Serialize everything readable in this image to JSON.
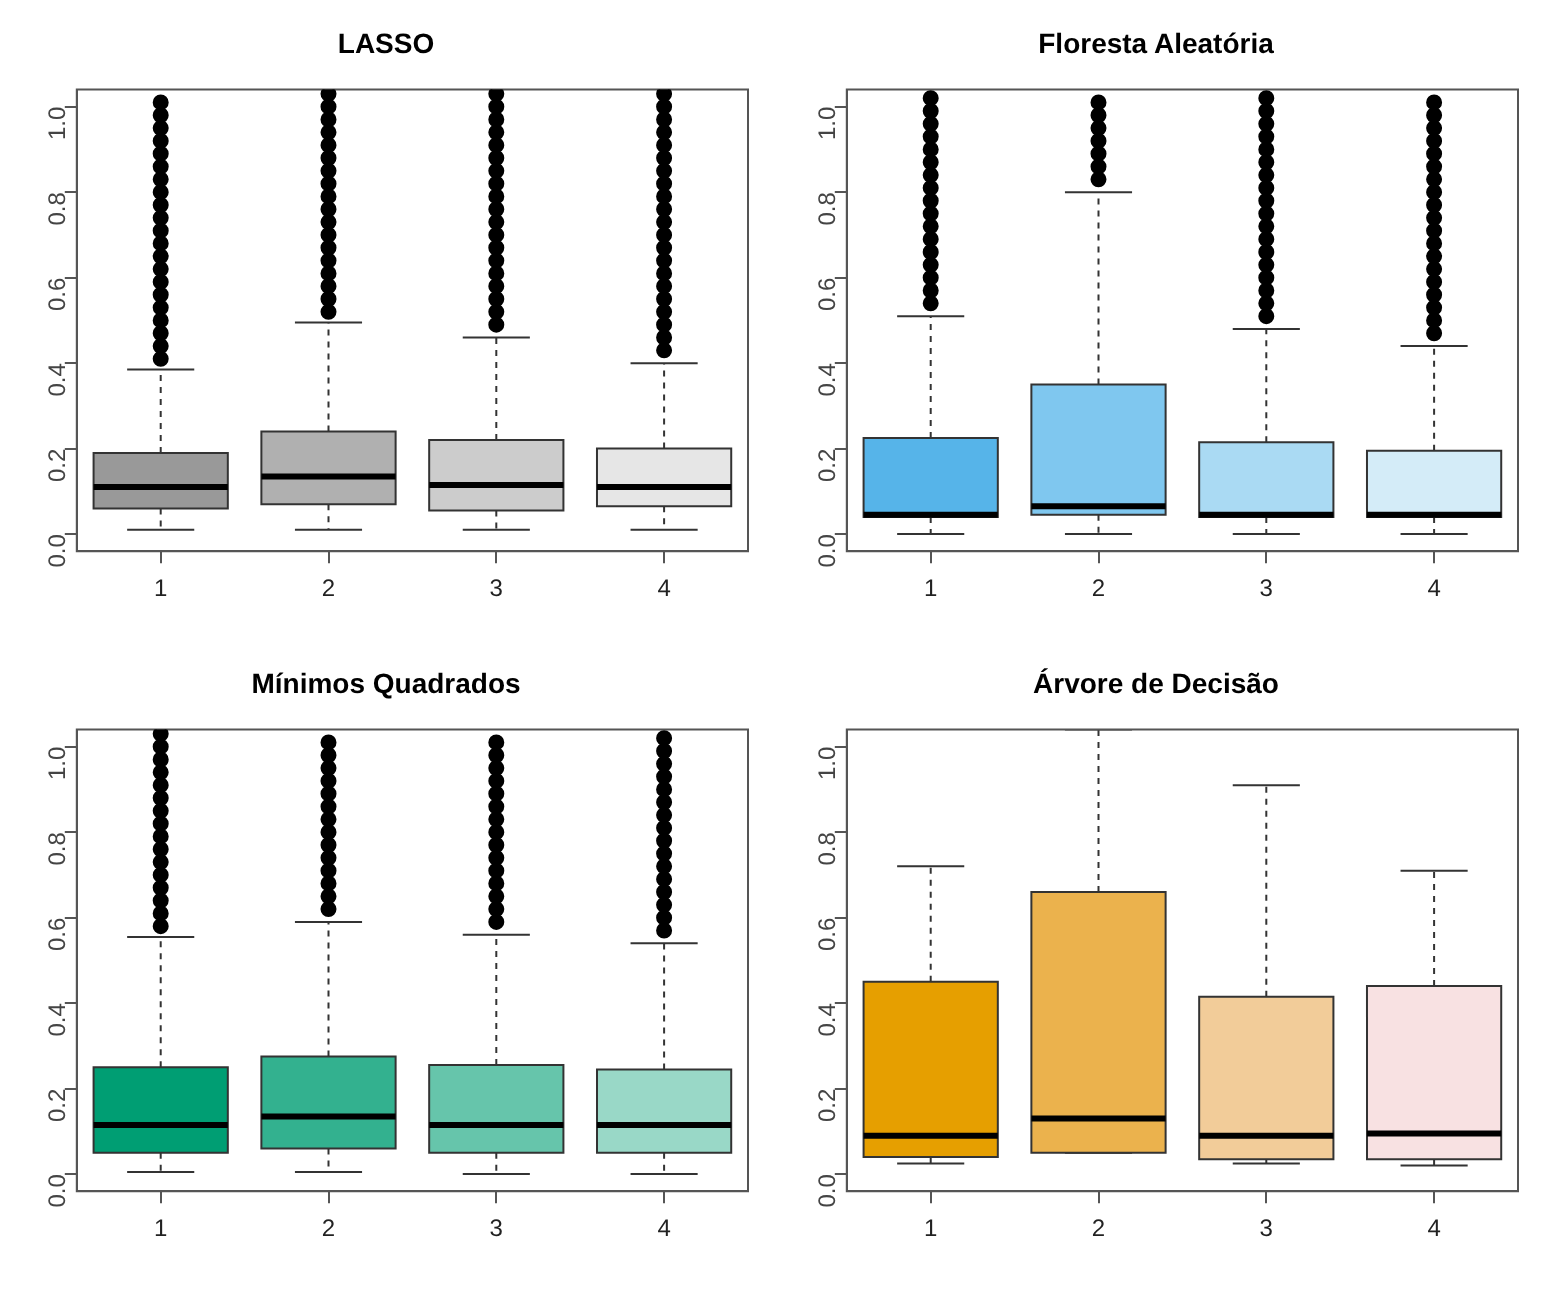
{
  "chart_data": [
    {
      "type": "box",
      "title": "LASSO",
      "categories": [
        "1",
        "2",
        "3",
        "4"
      ],
      "colors": [
        "#999999",
        "#b0b0b0",
        "#cccccc",
        "#e6e6e6"
      ],
      "ylim": [
        -0.04,
        1.04
      ],
      "yticks": [
        {
          "value": 0,
          "label": "0.0"
        },
        {
          "value": 0.2,
          "label": "0.2"
        },
        {
          "value": 0.4,
          "label": "0.4"
        },
        {
          "value": 0.6,
          "label": "0.6"
        },
        {
          "value": 0.8,
          "label": "0.8"
        },
        {
          "value": 1,
          "label": "1.0"
        }
      ],
      "grid": false,
      "legend": false,
      "boxes": [
        {
          "low": 0.01,
          "q1": 0.06,
          "median": 0.11,
          "q3": 0.19,
          "high": 0.385,
          "outliers": [
            0.41,
            0.44,
            0.47,
            0.5,
            0.53,
            0.56,
            0.59,
            0.62,
            0.65,
            0.68,
            0.71,
            0.74,
            0.77,
            0.8,
            0.83,
            0.86,
            0.89,
            0.92,
            0.95,
            0.98,
            1.01
          ]
        },
        {
          "low": 0.01,
          "q1": 0.07,
          "median": 0.135,
          "q3": 0.24,
          "high": 0.495,
          "outliers": [
            0.52,
            0.55,
            0.58,
            0.61,
            0.64,
            0.67,
            0.7,
            0.73,
            0.76,
            0.79,
            0.82,
            0.85,
            0.88,
            0.91,
            0.94,
            0.97,
            1.0,
            1.03
          ]
        },
        {
          "low": 0.01,
          "q1": 0.055,
          "median": 0.115,
          "q3": 0.22,
          "high": 0.46,
          "outliers": [
            0.49,
            0.52,
            0.55,
            0.58,
            0.61,
            0.64,
            0.67,
            0.7,
            0.73,
            0.76,
            0.79,
            0.82,
            0.85,
            0.88,
            0.91,
            0.94,
            0.97,
            1.0,
            1.03
          ]
        },
        {
          "low": 0.01,
          "q1": 0.065,
          "median": 0.11,
          "q3": 0.2,
          "high": 0.4,
          "outliers": [
            0.43,
            0.46,
            0.49,
            0.52,
            0.55,
            0.58,
            0.61,
            0.64,
            0.67,
            0.7,
            0.73,
            0.76,
            0.79,
            0.82,
            0.85,
            0.88,
            0.91,
            0.94,
            0.97,
            1.0,
            1.03
          ]
        }
      ]
    },
    {
      "type": "box",
      "title": "Floresta Aleatória",
      "categories": [
        "1",
        "2",
        "3",
        "4"
      ],
      "colors": [
        "#56b4e9",
        "#7fc7ef",
        "#aadaf3",
        "#d4ecf8"
      ],
      "ylim": [
        -0.04,
        1.04
      ],
      "yticks": [
        {
          "value": 0,
          "label": "0.0"
        },
        {
          "value": 0.2,
          "label": "0.2"
        },
        {
          "value": 0.4,
          "label": "0.4"
        },
        {
          "value": 0.6,
          "label": "0.6"
        },
        {
          "value": 0.8,
          "label": "0.8"
        },
        {
          "value": 1,
          "label": "1.0"
        }
      ],
      "grid": false,
      "legend": false,
      "boxes": [
        {
          "low": 0,
          "q1": 0.04,
          "median": 0.045,
          "q3": 0.225,
          "high": 0.51,
          "outliers": [
            0.54,
            0.57,
            0.6,
            0.63,
            0.66,
            0.69,
            0.72,
            0.75,
            0.78,
            0.81,
            0.84,
            0.87,
            0.9,
            0.93,
            0.96,
            0.99,
            1.02
          ]
        },
        {
          "low": 0,
          "q1": 0.045,
          "median": 0.065,
          "q3": 0.35,
          "high": 0.8,
          "outliers": [
            0.83,
            0.86,
            0.89,
            0.92,
            0.95,
            0.98,
            1.01
          ]
        },
        {
          "low": 0,
          "q1": 0.04,
          "median": 0.045,
          "q3": 0.215,
          "high": 0.48,
          "outliers": [
            0.51,
            0.54,
            0.57,
            0.6,
            0.63,
            0.66,
            0.69,
            0.72,
            0.75,
            0.78,
            0.81,
            0.84,
            0.87,
            0.9,
            0.93,
            0.96,
            0.99,
            1.02
          ]
        },
        {
          "low": 0,
          "q1": 0.04,
          "median": 0.045,
          "q3": 0.195,
          "high": 0.44,
          "outliers": [
            0.47,
            0.5,
            0.53,
            0.56,
            0.59,
            0.62,
            0.65,
            0.68,
            0.71,
            0.74,
            0.77,
            0.8,
            0.83,
            0.86,
            0.89,
            0.92,
            0.95,
            0.98,
            1.01
          ]
        }
      ]
    },
    {
      "type": "box",
      "title": "Mínimos Quadrados",
      "categories": [
        "1",
        "2",
        "3",
        "4"
      ],
      "colors": [
        "#009e73",
        "#33b18f",
        "#66c5ab",
        "#99d8c7"
      ],
      "ylim": [
        -0.04,
        1.04
      ],
      "yticks": [
        {
          "value": 0,
          "label": "0.0"
        },
        {
          "value": 0.2,
          "label": "0.2"
        },
        {
          "value": 0.4,
          "label": "0.4"
        },
        {
          "value": 0.6,
          "label": "0.6"
        },
        {
          "value": 0.8,
          "label": "0.8"
        },
        {
          "value": 1,
          "label": "1.0"
        }
      ],
      "grid": false,
      "legend": false,
      "boxes": [
        {
          "low": 0.005,
          "q1": 0.05,
          "median": 0.115,
          "q3": 0.25,
          "high": 0.555,
          "outliers": [
            0.58,
            0.61,
            0.64,
            0.67,
            0.7,
            0.73,
            0.76,
            0.79,
            0.82,
            0.85,
            0.88,
            0.91,
            0.94,
            0.97,
            1.0,
            1.03
          ]
        },
        {
          "low": 0.005,
          "q1": 0.06,
          "median": 0.135,
          "q3": 0.275,
          "high": 0.59,
          "outliers": [
            0.62,
            0.65,
            0.68,
            0.71,
            0.74,
            0.77,
            0.8,
            0.83,
            0.86,
            0.89,
            0.92,
            0.95,
            0.98,
            1.01
          ]
        },
        {
          "low": 0,
          "q1": 0.05,
          "median": 0.115,
          "q3": 0.255,
          "high": 0.56,
          "outliers": [
            0.59,
            0.62,
            0.65,
            0.68,
            0.71,
            0.74,
            0.77,
            0.8,
            0.83,
            0.86,
            0.89,
            0.92,
            0.95,
            0.98,
            1.01
          ]
        },
        {
          "low": 0,
          "q1": 0.05,
          "median": 0.115,
          "q3": 0.245,
          "high": 0.54,
          "outliers": [
            0.57,
            0.6,
            0.63,
            0.66,
            0.69,
            0.72,
            0.75,
            0.78,
            0.81,
            0.84,
            0.87,
            0.9,
            0.93,
            0.96,
            0.99,
            1.02
          ]
        }
      ]
    },
    {
      "type": "box",
      "title": "Árvore de Decisão",
      "categories": [
        "1",
        "2",
        "3",
        "4"
      ],
      "colors": [
        "#e69f00",
        "#ebb24d",
        "#f2cc99",
        "#f8e1e2"
      ],
      "ylim": [
        -0.04,
        1.04
      ],
      "yticks": [
        {
          "value": 0,
          "label": "0.0"
        },
        {
          "value": 0.2,
          "label": "0.2"
        },
        {
          "value": 0.4,
          "label": "0.4"
        },
        {
          "value": 0.6,
          "label": "0.6"
        },
        {
          "value": 0.8,
          "label": "0.8"
        },
        {
          "value": 1,
          "label": "1.0"
        }
      ],
      "grid": false,
      "legend": false,
      "boxes": [
        {
          "low": 0.025,
          "q1": 0.04,
          "median": 0.09,
          "q3": 0.45,
          "high": 0.72
        },
        {
          "low": 0.05,
          "q1": 0.05,
          "median": 0.13,
          "q3": 0.66,
          "high": 1.04
        },
        {
          "low": 0.025,
          "q1": 0.035,
          "median": 0.09,
          "q3": 0.415,
          "high": 0.91
        },
        {
          "low": 0.02,
          "q1": 0.035,
          "median": 0.095,
          "q3": 0.44,
          "high": 0.71
        }
      ]
    }
  ]
}
